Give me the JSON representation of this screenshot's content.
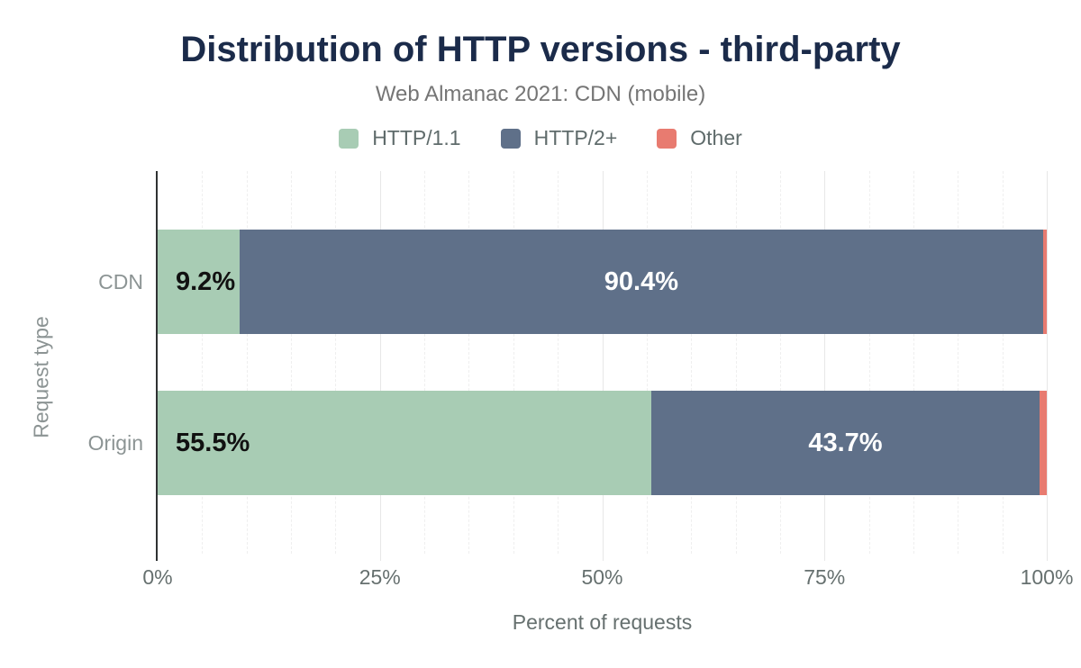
{
  "header": {
    "title": "Distribution of HTTP versions - third-party",
    "subtitle": "Web Almanac 2021: CDN (mobile)"
  },
  "colors": {
    "title": "#1b2b4a",
    "subtitle": "#757575",
    "axis_text": "#66706f",
    "category_text": "#8c9494",
    "http11": "#a8ccb4",
    "http2plus": "#5f7089",
    "other": "#e87b70"
  },
  "chart_data": {
    "type": "bar",
    "stacked": true,
    "orientation": "horizontal",
    "title": "Distribution of HTTP versions - third-party",
    "subtitle": "Web Almanac 2021: CDN (mobile)",
    "categories": [
      "CDN",
      "Origin"
    ],
    "series": [
      {
        "name": "HTTP/1.1",
        "color": "#a8ccb4",
        "values": [
          9.2,
          55.5
        ],
        "labels": [
          "9.2%",
          "55.5%"
        ],
        "label_color": "#111111",
        "label_align": "left"
      },
      {
        "name": "HTTP/2+",
        "color": "#5f7089",
        "values": [
          90.4,
          43.7
        ],
        "labels": [
          "90.4%",
          "43.7%"
        ],
        "label_color": "#ffffff",
        "label_align": "center"
      },
      {
        "name": "Other",
        "color": "#e87b70",
        "values": [
          0.4,
          0.8
        ],
        "labels": [
          "",
          ""
        ],
        "label_color": "#111111",
        "label_align": "center"
      }
    ],
    "xlabel": "Percent of requests",
    "ylabel": "Request type",
    "xlim": [
      0,
      100
    ],
    "x_ticks": [
      {
        "value": 0,
        "label": "0%"
      },
      {
        "value": 25,
        "label": "25%"
      },
      {
        "value": 50,
        "label": "50%"
      },
      {
        "value": 75,
        "label": "75%"
      },
      {
        "value": 100,
        "label": "100%"
      }
    ],
    "grid": {
      "major_every": 25,
      "minor_every": 5
    },
    "legend_position": "top"
  }
}
